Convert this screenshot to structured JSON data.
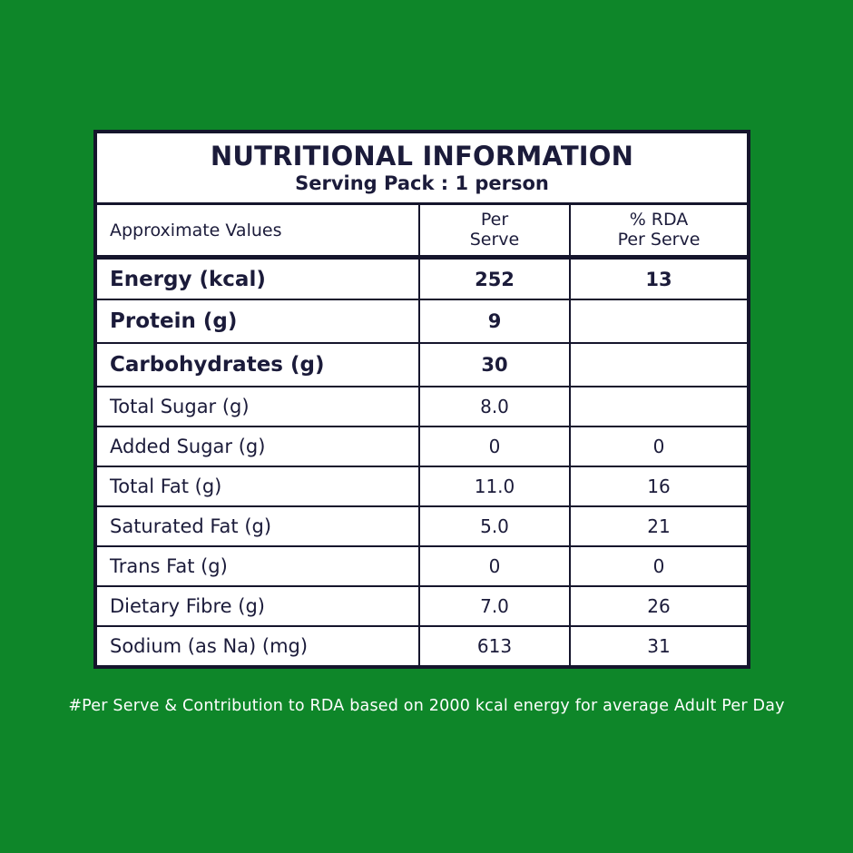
{
  "colors": {
    "background": "#0e8629",
    "text": "#1b1b3a",
    "table_border": "#15152c",
    "card": "#ffffff",
    "footnote_text": "#ffffff"
  },
  "header": {
    "title": "NUTRITIONAL INFORMATION",
    "subtitle": "Serving Pack : 1 person"
  },
  "columns": {
    "approximate_values": "Approximate Values",
    "per_serve_line1": "Per",
    "per_serve_line2": "Serve",
    "rda_line1": "% RDA",
    "rda_line2": "Per Serve"
  },
  "rows": [
    {
      "label": "Energy (kcal)",
      "per_serve": "252",
      "rda_per_serve": "13",
      "bold": true
    },
    {
      "label": "Protein (g)",
      "per_serve": "9",
      "rda_per_serve": "",
      "bold": true
    },
    {
      "label": "Carbohydrates (g)",
      "per_serve": "30",
      "rda_per_serve": "",
      "bold": true
    },
    {
      "label": "Total Sugar (g)",
      "per_serve": "8.0",
      "rda_per_serve": "",
      "bold": false
    },
    {
      "label": "Added Sugar (g)",
      "per_serve": "0",
      "rda_per_serve": "0",
      "bold": false
    },
    {
      "label": "Total Fat (g)",
      "per_serve": "11.0",
      "rda_per_serve": "16",
      "bold": false
    },
    {
      "label": "Saturated Fat (g)",
      "per_serve": "5.0",
      "rda_per_serve": "21",
      "bold": false
    },
    {
      "label": "Trans Fat (g)",
      "per_serve": "0",
      "rda_per_serve": "0",
      "bold": false
    },
    {
      "label": "Dietary Fibre (g)",
      "per_serve": "7.0",
      "rda_per_serve": "26",
      "bold": false
    },
    {
      "label": "Sodium (as Na) (mg)",
      "per_serve": "613",
      "rda_per_serve": "31",
      "bold": false
    }
  ],
  "footnote": "#Per Serve & Contribution to RDA based on 2000 kcal energy for average Adult Per Day"
}
